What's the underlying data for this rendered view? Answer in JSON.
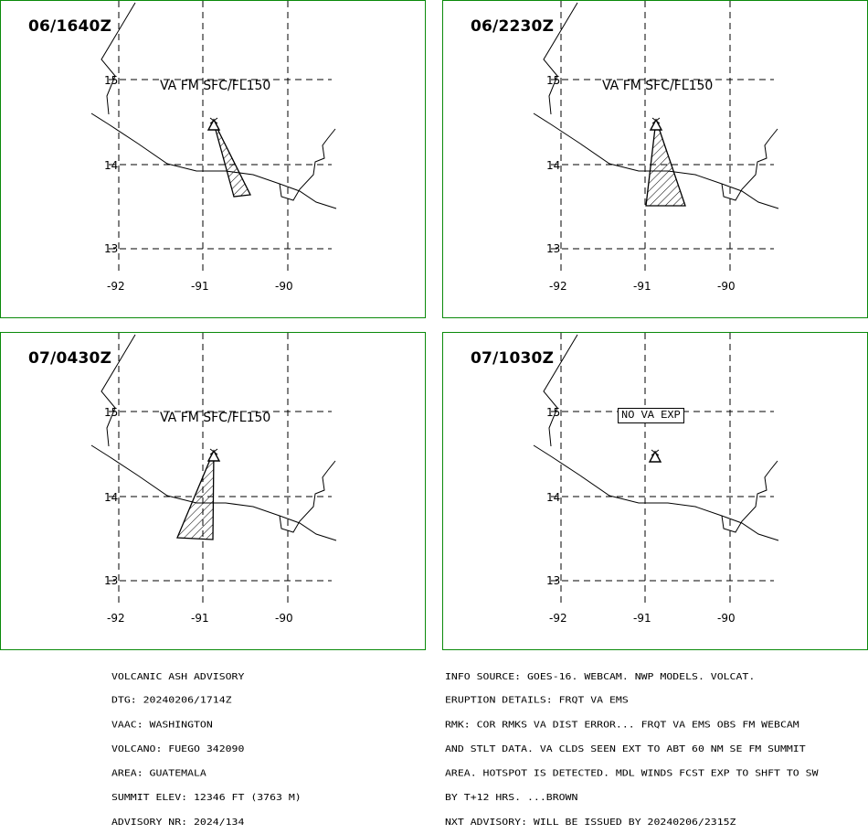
{
  "panels": [
    {
      "time": "06/1640Z",
      "label": "VA FM SFC/FL150",
      "label_style": "plain",
      "polygon": "narrow-se"
    },
    {
      "time": "06/2230Z",
      "label": "VA FM SFC/FL150",
      "label_style": "plain",
      "polygon": "fan-south"
    },
    {
      "time": "07/0430Z",
      "label": "VA FM SFC/FL150",
      "label_style": "plain",
      "polygon": "fan-sw"
    },
    {
      "time": "07/1030Z",
      "label": "NO VA EXP",
      "label_style": "boxed",
      "polygon": "none"
    }
  ],
  "axes": {
    "lat_ticks": [
      "15",
      "14",
      "13"
    ],
    "lon_ticks": [
      "-92",
      "-91",
      "-90"
    ]
  },
  "colors": {
    "panel_border": "#0a8a0a",
    "lines": "#000000"
  },
  "advisory_left": [
    "VOLCANIC ASH ADVISORY",
    "DTG: 20240206/1714Z",
    "VAAC: WASHINGTON",
    "VOLCANO: FUEGO 342090",
    "AREA: GUATEMALA",
    "SUMMIT ELEV: 12346 FT (3763 M)",
    "ADVISORY NR: 2024/134"
  ],
  "advisory_right": [
    "INFO SOURCE: GOES-16. WEBCAM. NWP MODELS. VOLCAT.",
    "ERUPTION DETAILS: FRQT VA EMS",
    "RMK: COR RMKS VA DIST ERROR... FRQT VA EMS OBS FM WEBCAM",
    "AND STLT DATA. VA CLDS SEEN EXT TO ABT 60 NM SE FM SUMMIT",
    "AREA. HOTSPOT IS DETECTED. MDL WINDS FCST EXP TO SHFT TO SW",
    "BY T+12 HRS. ...BROWN",
    "NXT ADVISORY: WILL BE ISSUED BY 20240206/2315Z"
  ]
}
